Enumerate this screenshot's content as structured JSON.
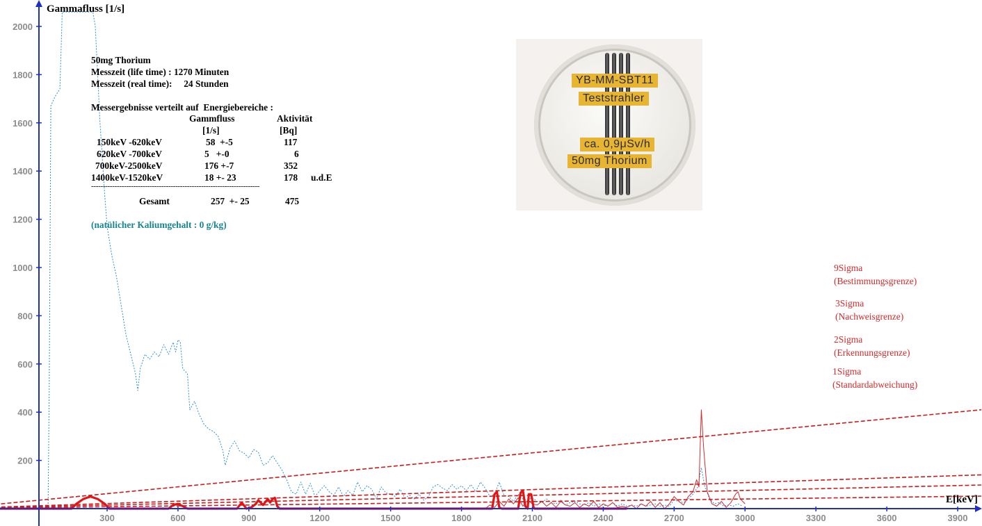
{
  "chart_data": {
    "type": "line",
    "ylabel": "Gammafluss [1/s]",
    "xlabel": "E[keV]",
    "xlim": [
      -360,
      4000
    ],
    "ylim": [
      0,
      2050
    ],
    "x_ticks": [
      300,
      600,
      900,
      1200,
      1500,
      1800,
      2100,
      2400,
      2700,
      3000,
      3300,
      3600,
      3900
    ],
    "y_ticks": [
      200,
      400,
      600,
      800,
      1000,
      1200,
      1400,
      1600,
      1800,
      2000
    ],
    "grid": false,
    "series": [
      {
        "color": "#2a8fd4",
        "style": "dotted",
        "points": [
          [
            0,
            0
          ],
          [
            50,
            0
          ],
          [
            55,
            500
          ],
          [
            62,
            1670
          ],
          [
            80,
            1710
          ],
          [
            100,
            1740
          ],
          [
            110,
            2080
          ],
          [
            240,
            2080
          ],
          [
            250,
            2000
          ],
          [
            270,
            1600
          ],
          [
            290,
            1300
          ],
          [
            300,
            1170
          ],
          [
            320,
            1050
          ],
          [
            340,
            960
          ],
          [
            360,
            840
          ],
          [
            380,
            720
          ],
          [
            400,
            640
          ],
          [
            420,
            560
          ],
          [
            430,
            490
          ],
          [
            440,
            580
          ],
          [
            460,
            640
          ],
          [
            480,
            620
          ],
          [
            500,
            650
          ],
          [
            520,
            630
          ],
          [
            540,
            680
          ],
          [
            560,
            640
          ],
          [
            580,
            690
          ],
          [
            590,
            650
          ],
          [
            600,
            700
          ],
          [
            610,
            690
          ],
          [
            620,
            580
          ],
          [
            640,
            560
          ],
          [
            650,
            410
          ],
          [
            670,
            445
          ],
          [
            690,
            390
          ],
          [
            710,
            350
          ],
          [
            730,
            330
          ],
          [
            750,
            320
          ],
          [
            770,
            300
          ],
          [
            790,
            240
          ],
          [
            800,
            180
          ],
          [
            820,
            250
          ],
          [
            840,
            280
          ],
          [
            860,
            240
          ],
          [
            880,
            230
          ],
          [
            900,
            210
          ],
          [
            920,
            245
          ],
          [
            940,
            235
          ],
          [
            960,
            180
          ],
          [
            980,
            190
          ],
          [
            1000,
            220
          ],
          [
            1020,
            190
          ],
          [
            1040,
            160
          ],
          [
            1060,
            120
          ],
          [
            1080,
            70
          ],
          [
            1100,
            60
          ],
          [
            1120,
            110
          ],
          [
            1140,
            60
          ],
          [
            1160,
            105
          ],
          [
            1180,
            50
          ],
          [
            1200,
            75
          ],
          [
            1220,
            95
          ],
          [
            1240,
            70
          ],
          [
            1260,
            55
          ],
          [
            1280,
            90
          ],
          [
            1300,
            50
          ],
          [
            1320,
            75
          ],
          [
            1340,
            55
          ],
          [
            1360,
            110
          ],
          [
            1380,
            70
          ],
          [
            1400,
            95
          ],
          [
            1420,
            80
          ],
          [
            1440,
            40
          ],
          [
            1460,
            90
          ],
          [
            1480,
            65
          ],
          [
            1500,
            60
          ],
          [
            1520,
            50
          ],
          [
            1540,
            80
          ],
          [
            1560,
            45
          ],
          [
            1580,
            55
          ],
          [
            1600,
            40
          ],
          [
            1620,
            60
          ],
          [
            1640,
            35
          ],
          [
            1660,
            50
          ],
          [
            1680,
            90
          ],
          [
            1700,
            100
          ],
          [
            1720,
            85
          ],
          [
            1740,
            75
          ],
          [
            1760,
            100
          ],
          [
            1780,
            80
          ],
          [
            1800,
            95
          ],
          [
            1820,
            75
          ],
          [
            1840,
            100
          ],
          [
            1860,
            70
          ],
          [
            1880,
            110
          ],
          [
            1900,
            85
          ],
          [
            1920,
            50
          ],
          [
            1940,
            60
          ],
          [
            1960,
            110
          ],
          [
            1980,
            55
          ],
          [
            2000,
            50
          ],
          [
            2020,
            30
          ],
          [
            2040,
            60
          ],
          [
            2060,
            40
          ],
          [
            2080,
            35
          ],
          [
            2100,
            45
          ],
          [
            2120,
            30
          ],
          [
            2140,
            25
          ],
          [
            2160,
            40
          ],
          [
            2180,
            25
          ],
          [
            2200,
            20
          ],
          [
            2220,
            35
          ],
          [
            2240,
            15
          ],
          [
            2260,
            25
          ],
          [
            2280,
            30
          ],
          [
            2300,
            20
          ],
          [
            2320,
            15
          ],
          [
            2340,
            25
          ],
          [
            2360,
            10
          ],
          [
            2380,
            20
          ],
          [
            2400,
            15
          ],
          [
            2420,
            10
          ],
          [
            2440,
            25
          ],
          [
            2460,
            10
          ],
          [
            2480,
            20
          ],
          [
            2500,
            10
          ],
          [
            2520,
            15
          ],
          [
            2540,
            10
          ],
          [
            2560,
            20
          ],
          [
            2580,
            10
          ],
          [
            2600,
            15
          ],
          [
            2620,
            20
          ],
          [
            2640,
            10
          ],
          [
            2660,
            15
          ],
          [
            2680,
            10
          ],
          [
            2700,
            35
          ],
          [
            2720,
            30
          ],
          [
            2740,
            25
          ],
          [
            2760,
            40
          ],
          [
            2780,
            60
          ],
          [
            2800,
            90
          ],
          [
            2815,
            170
          ],
          [
            2830,
            90
          ],
          [
            2850,
            40
          ],
          [
            2870,
            20
          ],
          [
            2890,
            25
          ],
          [
            2910,
            10
          ],
          [
            2930,
            15
          ],
          [
            2950,
            10
          ],
          [
            2970,
            20
          ],
          [
            2990,
            10
          ]
        ]
      },
      {
        "color": "#d42a2a",
        "style": "thin",
        "points": [
          [
            1900,
            0
          ],
          [
            1920,
            15
          ],
          [
            1940,
            5
          ],
          [
            1960,
            30
          ],
          [
            1980,
            10
          ],
          [
            2000,
            40
          ],
          [
            2020,
            20
          ],
          [
            2040,
            45
          ],
          [
            2060,
            10
          ],
          [
            2080,
            35
          ],
          [
            2100,
            20
          ],
          [
            2120,
            15
          ],
          [
            2140,
            30
          ],
          [
            2160,
            10
          ],
          [
            2180,
            25
          ],
          [
            2200,
            5
          ],
          [
            2220,
            30
          ],
          [
            2240,
            15
          ],
          [
            2260,
            10
          ],
          [
            2280,
            25
          ],
          [
            2300,
            5
          ],
          [
            2320,
            20
          ],
          [
            2340,
            10
          ],
          [
            2360,
            30
          ],
          [
            2380,
            5
          ],
          [
            2400,
            20
          ],
          [
            2420,
            10
          ],
          [
            2440,
            25
          ],
          [
            2460,
            5
          ],
          [
            2480,
            10
          ],
          [
            2500,
            5
          ],
          [
            2520,
            15
          ],
          [
            2540,
            0
          ],
          [
            2560,
            20
          ],
          [
            2580,
            10
          ],
          [
            2600,
            30
          ],
          [
            2620,
            5
          ],
          [
            2640,
            25
          ],
          [
            2660,
            0
          ],
          [
            2680,
            20
          ],
          [
            2700,
            50
          ],
          [
            2720,
            30
          ],
          [
            2740,
            15
          ],
          [
            2760,
            50
          ],
          [
            2780,
            70
          ],
          [
            2795,
            120
          ],
          [
            2805,
            90
          ],
          [
            2815,
            410
          ],
          [
            2825,
            250
          ],
          [
            2840,
            70
          ],
          [
            2860,
            20
          ],
          [
            2880,
            10
          ],
          [
            2900,
            30
          ],
          [
            2920,
            5
          ],
          [
            2940,
            25
          ],
          [
            2960,
            60
          ],
          [
            2970,
            70
          ],
          [
            2980,
            40
          ],
          [
            3000,
            20
          ]
        ]
      },
      {
        "color": "#e31414",
        "style": "thick",
        "points": [
          [
            -360,
            0
          ],
          [
            150,
            0
          ],
          [
            170,
            20
          ],
          [
            200,
            40
          ],
          [
            230,
            50
          ],
          [
            260,
            40
          ],
          [
            290,
            20
          ],
          [
            310,
            0
          ],
          [
            560,
            0
          ],
          [
            580,
            15
          ],
          [
            600,
            20
          ],
          [
            620,
            10
          ],
          [
            640,
            0
          ],
          [
            850,
            0
          ],
          [
            870,
            25
          ],
          [
            890,
            0
          ],
          [
            910,
            5
          ],
          [
            930,
            20
          ],
          [
            940,
            35
          ],
          [
            960,
            15
          ],
          [
            980,
            40
          ],
          [
            990,
            25
          ],
          [
            1000,
            40
          ],
          [
            1010,
            45
          ],
          [
            1020,
            10
          ],
          [
            1030,
            0
          ],
          [
            1930,
            0
          ],
          [
            1940,
            60
          ],
          [
            1950,
            70
          ],
          [
            1960,
            5
          ],
          [
            1970,
            0
          ],
          [
            2040,
            0
          ],
          [
            2050,
            65
          ],
          [
            2060,
            75
          ],
          [
            2070,
            10
          ],
          [
            2080,
            0
          ],
          [
            2085,
            60
          ],
          [
            2095,
            60
          ],
          [
            2105,
            5
          ],
          [
            2110,
            0
          ],
          [
            2500,
            0
          ]
        ]
      },
      {
        "color": "#cc1a1a",
        "style": "dashed",
        "points": [
          [
            -360,
            0
          ],
          [
            4000,
            410
          ]
        ]
      },
      {
        "color": "#cc1a1a",
        "style": "dashed",
        "points": [
          [
            -360,
            0
          ],
          [
            4000,
            140
          ]
        ]
      },
      {
        "color": "#cc1a1a",
        "style": "dashed",
        "points": [
          [
            -360,
            0
          ],
          [
            4000,
            98
          ]
        ]
      },
      {
        "color": "#cc1a1a",
        "style": "dashed",
        "points": [
          [
            -360,
            0
          ],
          [
            4000,
            52
          ]
        ]
      }
    ],
    "annotations": {
      "sigma_labels": [
        {
          "title": "9Sigma",
          "subtitle": "(Bestimmungsgrenze)"
        },
        {
          "title": "3Sigma",
          "subtitle": "(Nachweisgrenze)"
        },
        {
          "title": "2Sigma",
          "subtitle": "(Erkennungsgrenze)"
        },
        {
          "title": "1Sigma",
          "subtitle": "(Standardabweichung)"
        }
      ]
    }
  },
  "info": {
    "title": "50mg Thorium",
    "life_time": "Messzeit (life time) : 1270 Minuten",
    "real_time": "Messzeit (real time):     24 Stunden",
    "heading": "Messergebnisse verteilt auf  Energiebereiche :",
    "col_flux": "Gammfluss",
    "col_activity": "Aktivität",
    "col_flux_unit": "[1/s]",
    "col_activity_unit": "[Bq]",
    "rows": [
      {
        "range": "150keV -620keV",
        "flux": "58  +-5",
        "activity": "117",
        "note": ""
      },
      {
        "range": "620keV -700keV",
        "flux": "5   +-0",
        "activity": "6",
        "note": ""
      },
      {
        "range": "700keV-2500keV",
        "flux": "176 +-7",
        "activity": "352",
        "note": ""
      },
      {
        "range": "1400keV-1520keV",
        "flux": "18 +- 23",
        "activity": "178",
        "note": "u.d.E"
      }
    ],
    "separator": "------------------------------------------------------------------------",
    "total_label": "Gesamt",
    "total_flux": "257  +- 25",
    "total_activity": "475",
    "potassium": "(natülicher Kaliumgehalt : 0 g/kg)"
  },
  "photo": {
    "tags": [
      "YB-MM-SBT11",
      "Teststrahler",
      "ca. 0,9μSv/h",
      "50mg Thorium"
    ]
  },
  "colors": {
    "axis": "#1f2fbf",
    "tick_text": "#8c8c8c",
    "sigma_text": "#d42a2a",
    "teal": "#17868e"
  }
}
